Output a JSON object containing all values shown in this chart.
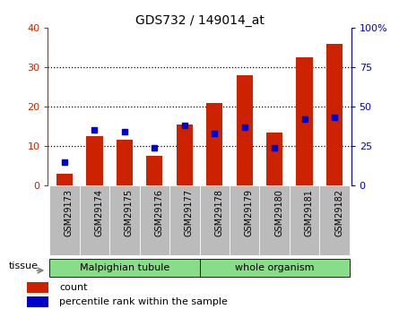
{
  "title": "GDS732 / 149014_at",
  "categories": [
    "GSM29173",
    "GSM29174",
    "GSM29175",
    "GSM29176",
    "GSM29177",
    "GSM29178",
    "GSM29179",
    "GSM29180",
    "GSM29181",
    "GSM29182"
  ],
  "count_values": [
    3,
    12.5,
    11.5,
    7.5,
    15.5,
    21,
    28,
    13.5,
    32.5,
    36
  ],
  "percentile_values": [
    15,
    35,
    34,
    24,
    38,
    33,
    37,
    24,
    42,
    43
  ],
  "tissue_groups": [
    {
      "label": "Malpighian tubule",
      "start": 0,
      "end": 5
    },
    {
      "label": "whole organism",
      "start": 5,
      "end": 10
    }
  ],
  "tissue_label": "tissue",
  "left_ylim": [
    0,
    40
  ],
  "right_ylim": [
    0,
    100
  ],
  "left_yticks": [
    0,
    10,
    20,
    30,
    40
  ],
  "right_yticks": [
    0,
    25,
    50,
    75,
    100
  ],
  "right_yticklabels": [
    "0",
    "25",
    "50",
    "75",
    "100%"
  ],
  "bar_color": "#cc2200",
  "percentile_color": "#0000cc",
  "bg_color": "#ffffff",
  "tick_bg": "#bbbbbb",
  "group_bg": "#88dd88",
  "legend_count_label": "count",
  "legend_percentile_label": "percentile rank within the sample",
  "bar_width": 0.55
}
